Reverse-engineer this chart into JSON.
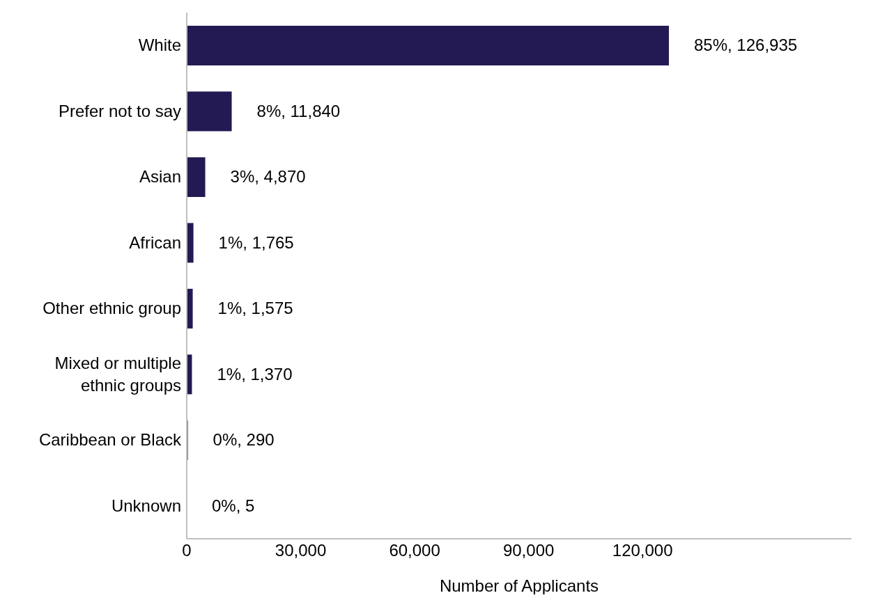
{
  "chart_data": {
    "type": "bar",
    "orientation": "horizontal",
    "xlabel": "Number of Applicants",
    "categories": [
      "White",
      "Prefer not to say",
      "Asian",
      "African",
      "Other ethnic group",
      "Mixed or multiple ethnic groups",
      "Caribbean or Black",
      "Unknown"
    ],
    "values": [
      126935,
      11840,
      4870,
      1765,
      1575,
      1370,
      290,
      5
    ],
    "value_labels": [
      "85%, 126,935",
      "8%, 11,840",
      "3%, 4,870",
      "1%, 1,765",
      "1%, 1,575",
      "1%, 1,370",
      "0%, 290",
      "0%, 5"
    ],
    "color": "#231a54",
    "xlim": [
      0,
      175000
    ],
    "xticks": [
      0,
      {
        "value": 30000,
        "label": "30,000"
      },
      {
        "value": 60000,
        "label": "60,000"
      },
      {
        "value": 90000,
        "label": "90,000"
      },
      {
        "value": 120000,
        "label": "120,000"
      }
    ],
    "grid": false,
    "legend": false
  }
}
